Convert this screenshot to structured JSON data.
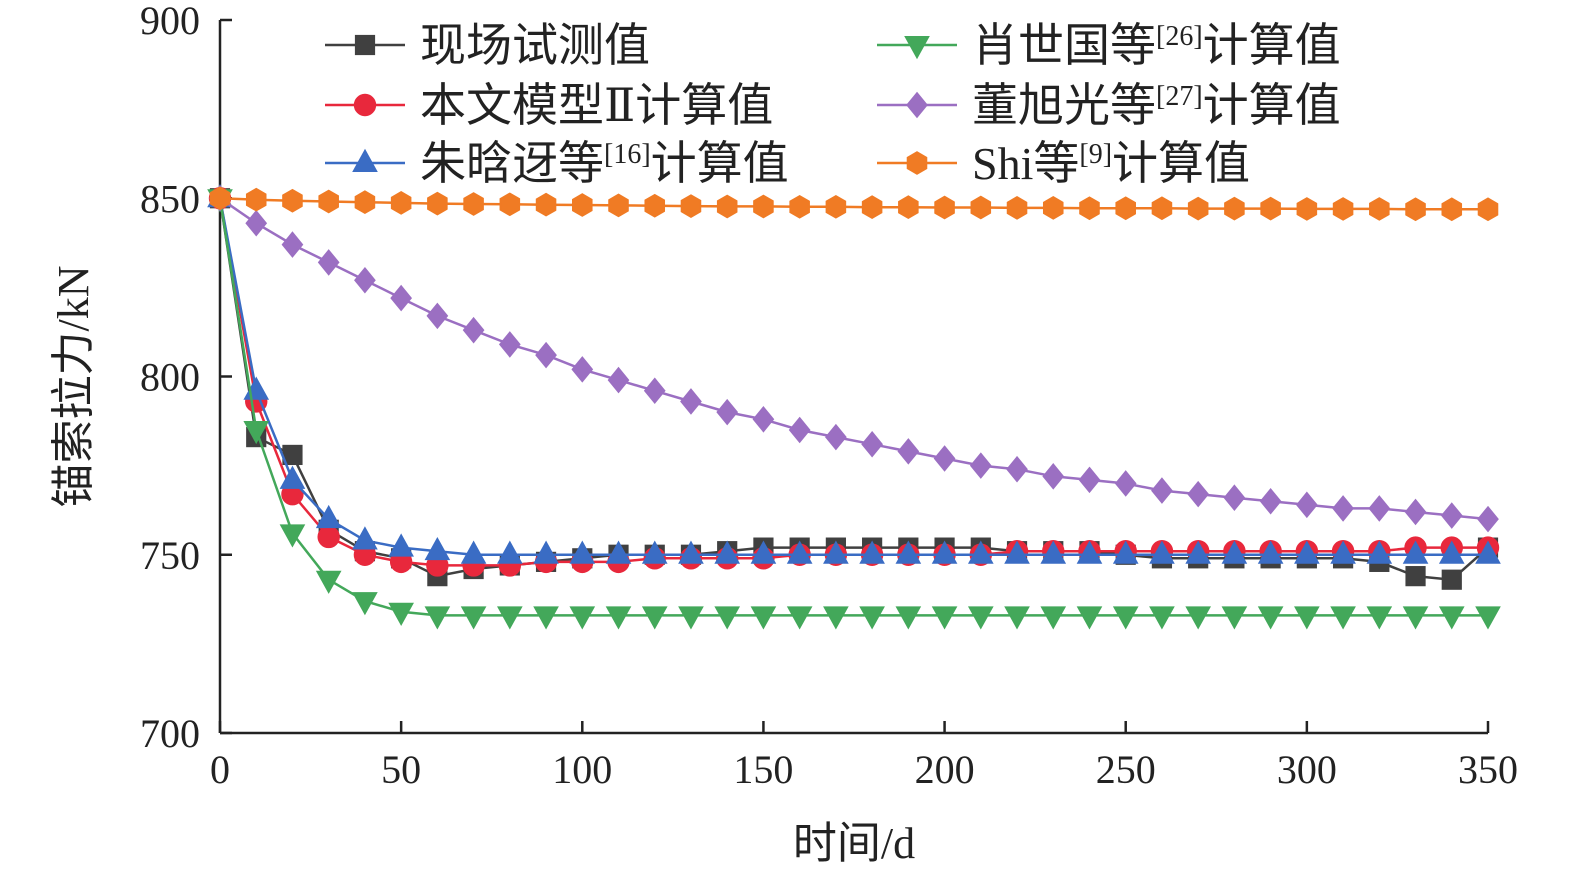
{
  "chart_data": {
    "type": "line",
    "xlabel": "时间/d",
    "ylabel": "锚索拉力/kN",
    "xlim": [
      0,
      350
    ],
    "ylim": [
      700,
      900
    ],
    "xticks": [
      0,
      50,
      100,
      150,
      200,
      250,
      300,
      350
    ],
    "yticks": [
      700,
      750,
      800,
      850,
      900
    ],
    "grid": false,
    "legend_position": "top",
    "x": [
      0,
      10,
      20,
      30,
      40,
      50,
      60,
      70,
      80,
      90,
      100,
      110,
      120,
      130,
      140,
      150,
      160,
      170,
      180,
      190,
      200,
      210,
      220,
      230,
      240,
      250,
      260,
      270,
      280,
      290,
      300,
      310,
      320,
      330,
      340,
      350
    ],
    "series": [
      {
        "name": "现场试测值",
        "name_sup": "",
        "name_suffix": "",
        "color": "#404040",
        "marker": "square",
        "values": [
          850,
          783,
          778,
          757,
          751,
          749,
          744,
          746,
          747,
          748,
          749,
          750,
          750,
          750,
          751,
          752,
          752,
          752,
          752,
          752,
          752,
          752,
          751,
          751,
          751,
          750,
          749,
          749,
          749,
          749,
          749,
          749,
          748,
          744,
          743,
          752
        ]
      },
      {
        "name": "本文模型Ⅱ计算值",
        "name_sup": "",
        "name_suffix": "",
        "color": "#e8283c",
        "marker": "circle",
        "values": [
          850,
          793,
          767,
          755,
          750,
          748,
          747,
          747,
          747,
          748,
          748,
          748,
          749,
          749,
          749,
          749,
          750,
          750,
          750,
          750,
          750,
          750,
          751,
          751,
          751,
          751,
          751,
          751,
          751,
          751,
          751,
          751,
          751,
          752,
          752,
          752
        ]
      },
      {
        "name": "朱晗迓等",
        "name_sup": "[16]",
        "name_suffix": "计算值",
        "color": "#3a6cc4",
        "marker": "triangle-up",
        "values": [
          850,
          796,
          771,
          760,
          754,
          752,
          751,
          750,
          750,
          750,
          750,
          750,
          750,
          750,
          750,
          750,
          750,
          750,
          750,
          750,
          750,
          750,
          750,
          750,
          750,
          750,
          750,
          750,
          750,
          750,
          750,
          750,
          750,
          750,
          750,
          750
        ]
      },
      {
        "name": "肖世国等",
        "name_sup": "[26]",
        "name_suffix": "计算值",
        "color": "#43a85a",
        "marker": "triangle-down",
        "values": [
          850,
          785,
          756,
          743,
          737,
          734,
          733,
          733,
          733,
          733,
          733,
          733,
          733,
          733,
          733,
          733,
          733,
          733,
          733,
          733,
          733,
          733,
          733,
          733,
          733,
          733,
          733,
          733,
          733,
          733,
          733,
          733,
          733,
          733,
          733,
          733
        ]
      },
      {
        "name": "董旭光等",
        "name_sup": "[27]",
        "name_suffix": "计算值",
        "color": "#9b6fc2",
        "marker": "diamond",
        "values": [
          850,
          843,
          837,
          832,
          827,
          822,
          817,
          813,
          809,
          806,
          802,
          799,
          796,
          793,
          790,
          788,
          785,
          783,
          781,
          779,
          777,
          775,
          774,
          772,
          771,
          770,
          768,
          767,
          766,
          765,
          764,
          763,
          763,
          762,
          761,
          760
        ]
      },
      {
        "name": "Shi等",
        "name_sup": "[9]",
        "name_suffix": "计算值",
        "color": "#f07b24",
        "marker": "hexagon",
        "values": [
          850,
          849.6,
          849.3,
          849.1,
          848.9,
          848.7,
          848.5,
          848.4,
          848.3,
          848.2,
          848.1,
          848.0,
          847.9,
          847.8,
          847.7,
          847.7,
          847.6,
          847.6,
          847.5,
          847.5,
          847.4,
          847.4,
          847.3,
          847.3,
          847.2,
          847.2,
          847.2,
          847.1,
          847.1,
          847.1,
          847.0,
          847.0,
          847.0,
          846.9,
          846.9,
          846.9
        ]
      }
    ]
  }
}
